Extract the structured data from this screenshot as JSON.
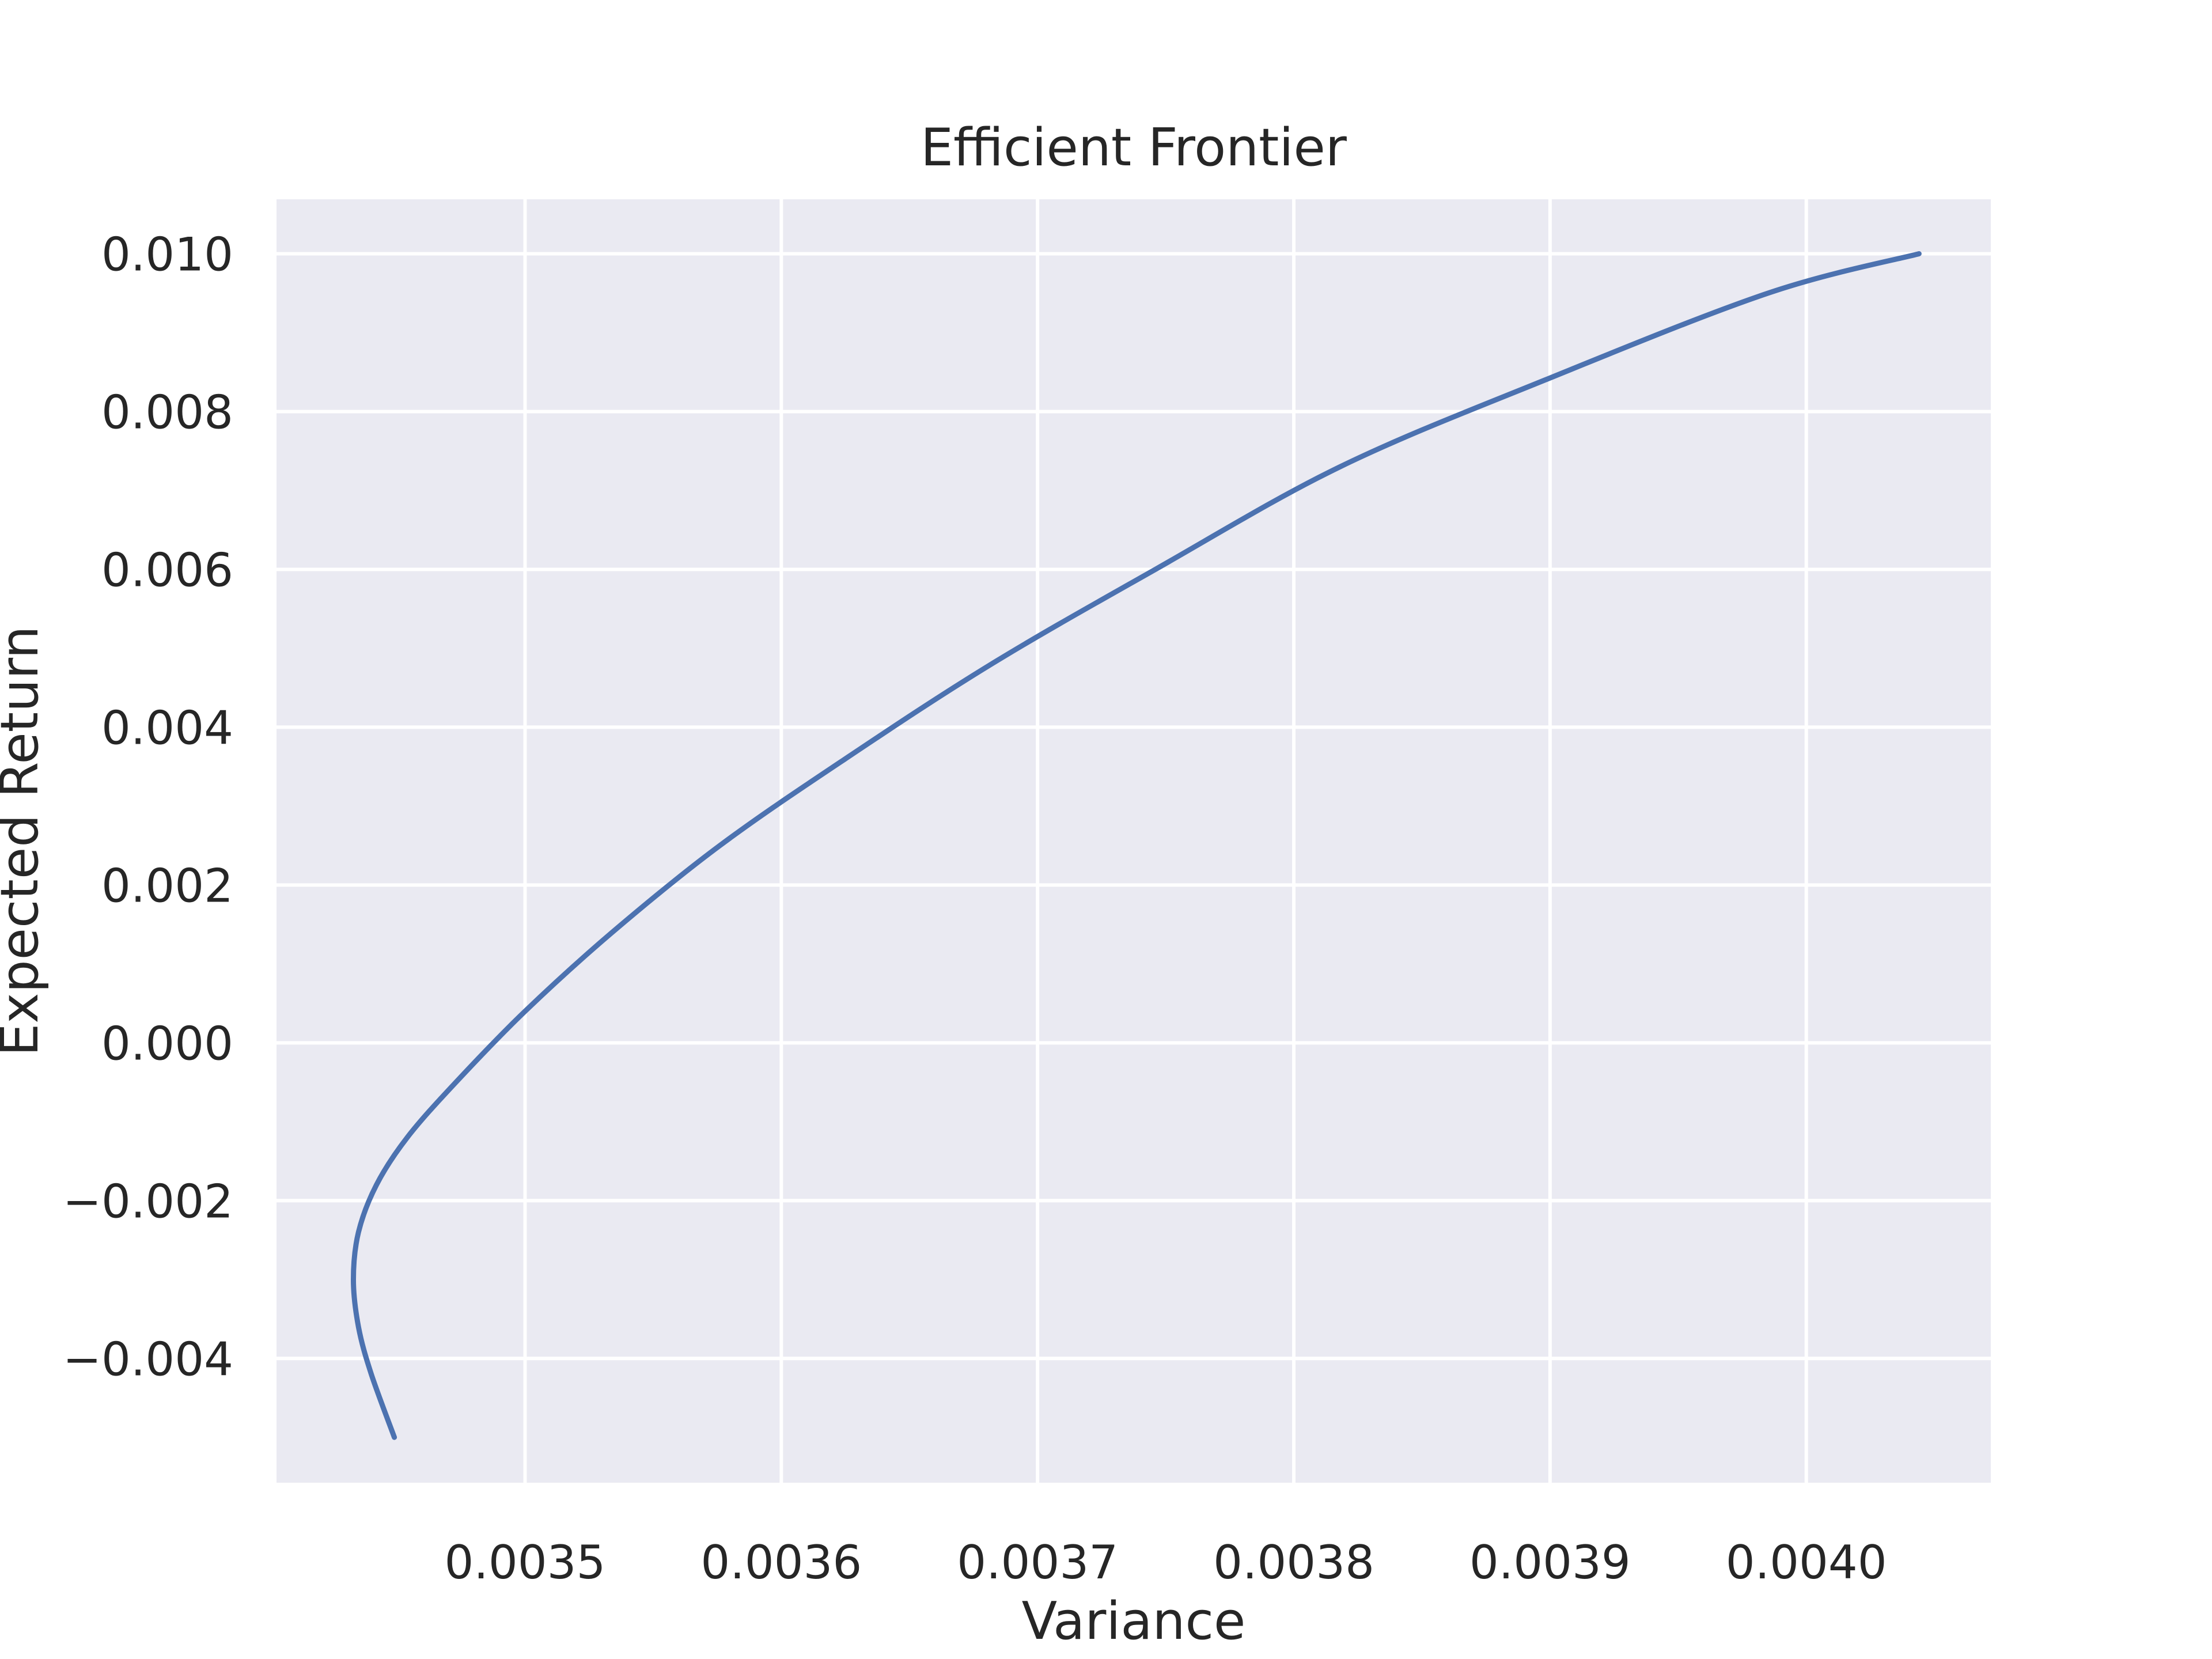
{
  "chart_data": {
    "type": "line",
    "title": "Efficient Frontier",
    "xlabel": "Variance",
    "ylabel": "Expected Return",
    "xlim": [
      0.003403,
      0.004072
    ],
    "ylim": [
      -0.005575,
      0.01069
    ],
    "xticks": [
      0.0035,
      0.0036,
      0.0037,
      0.0038,
      0.0039,
      0.004
    ],
    "xtick_labels": [
      "0.0035",
      "0.0036",
      "0.0037",
      "0.0038",
      "0.0039",
      "0.0040"
    ],
    "yticks": [
      -0.004,
      -0.002,
      0.0,
      0.002,
      0.004,
      0.006,
      0.008,
      0.01
    ],
    "ytick_labels": [
      "−0.004",
      "−0.002",
      "0.000",
      "0.002",
      "0.004",
      "0.006",
      "0.008",
      "0.010"
    ],
    "grid": true,
    "background_color": "#eaeaf2",
    "grid_color": "#ffffff",
    "series": [
      {
        "color": "#4c72b0",
        "x": [
          0.003449,
          0.00344,
          0.003435,
          0.003433,
          0.003435,
          0.003442,
          0.003454,
          0.003473,
          0.0035,
          0.003534,
          0.003576,
          0.003625,
          0.003682,
          0.003746,
          0.003818,
          0.003898,
          0.003985,
          0.004044
        ],
        "y": [
          -0.005,
          -0.0042,
          -0.0036,
          -0.003,
          -0.0024,
          -0.0018,
          -0.0012,
          -0.0005,
          0.0004,
          0.0014,
          0.0025,
          0.0036,
          0.0048,
          0.006,
          0.0073,
          0.0084,
          0.0095,
          0.01
        ]
      }
    ]
  }
}
